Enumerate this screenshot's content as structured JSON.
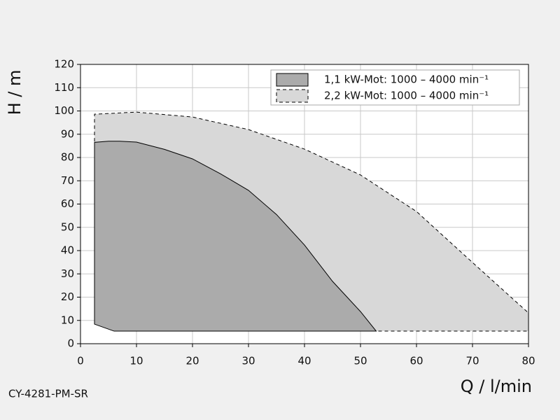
{
  "chart_data": {
    "type": "area",
    "annotation": "CY-4281-PM-SR",
    "x_label": "Q / l/min",
    "y_label": "H / m",
    "xlim": [
      0,
      80
    ],
    "ylim": [
      0,
      120
    ],
    "xticks": [
      0,
      10,
      20,
      30,
      40,
      50,
      60,
      70,
      80
    ],
    "yticks": [
      0,
      10,
      20,
      30,
      40,
      50,
      60,
      70,
      80,
      90,
      100,
      110,
      120
    ],
    "grid": true,
    "legend": "upper right",
    "series": [
      {
        "name": "1,1 kW-Mot: 1000 – 4000 min⁻¹",
        "color": "#ababab",
        "line_style": "solid",
        "x": [
          2.5,
          2.5,
          5,
          7,
          10,
          15,
          20,
          25,
          30,
          35,
          40,
          45,
          50,
          52.8,
          6,
          2.5
        ],
        "values": [
          8.4,
          86.5,
          87,
          87,
          86.6,
          83.5,
          79.4,
          73,
          65.9,
          55.5,
          42.4,
          26.8,
          13.8,
          5.4,
          5.4,
          8.4
        ]
      },
      {
        "name": "2,2 kW-Mot: 1000 – 4000 min⁻¹",
        "color": "#d8d8d8",
        "line_style": "dashed",
        "x": [
          2.5,
          2.5,
          10,
          20,
          30,
          40,
          50,
          60,
          70,
          80,
          80,
          12,
          2.5
        ],
        "values": [
          8.4,
          98.6,
          99.5,
          97.4,
          92,
          83.6,
          72.5,
          56.8,
          34.9,
          13.2,
          5.4,
          5.4,
          8.4
        ]
      }
    ]
  }
}
